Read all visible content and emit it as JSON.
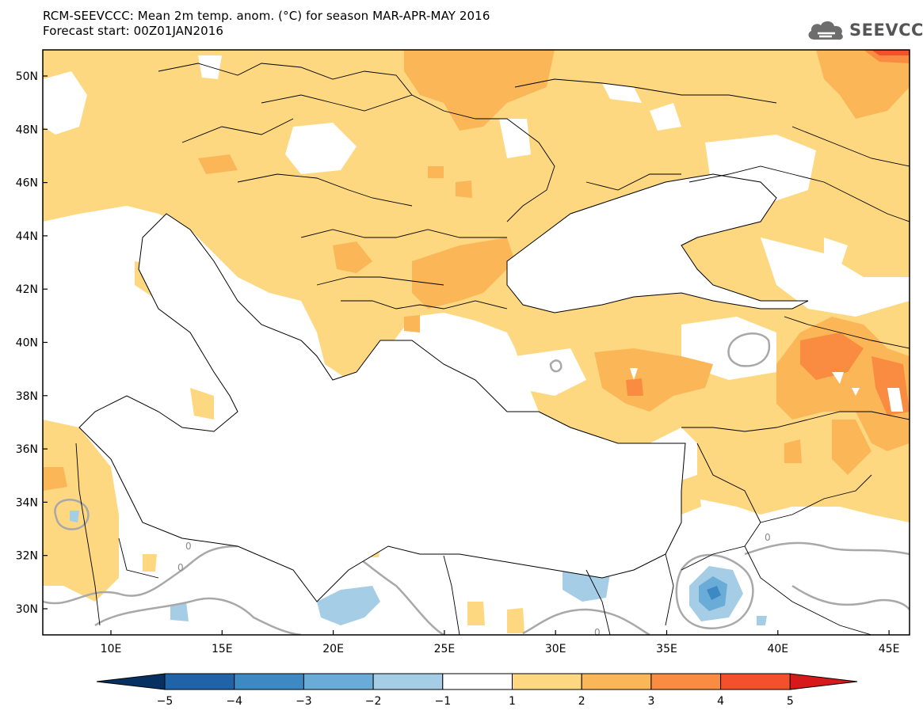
{
  "header": {
    "line1": "RCM-SEEVCCC: Mean 2m temp. anom. (°C) for season MAR-APR-MAY 2016",
    "line2": "Forecast start: 00Z01JAN2016"
  },
  "logo": {
    "text": "SEEVCCC",
    "icon": "cloud-icon"
  },
  "map": {
    "lat_labels": [
      "50N",
      "48N",
      "46N",
      "44N",
      "42N",
      "40N",
      "38N",
      "36N",
      "34N",
      "32N",
      "30N"
    ],
    "lon_labels": [
      "10E",
      "15E",
      "20E",
      "25E",
      "30E",
      "35E",
      "40E",
      "45E"
    ],
    "lon_range": [
      7,
      45.5
    ],
    "lat_range": [
      29,
      51
    ],
    "contour_labels": [
      "0",
      "0",
      "0",
      "0"
    ]
  },
  "colorbar": {
    "ticks": [
      "−5",
      "−4",
      "−3",
      "−2",
      "−1",
      "1",
      "2",
      "3",
      "4",
      "5"
    ],
    "colors": {
      "below_-5": "#053061",
      "-5_-4": "#1f63a8",
      "-4_-3": "#3c89c4",
      "-3_-2": "#6aacd8",
      "-2_-1": "#a5cde5",
      "-1_1": "#ffffff",
      "1_2": "#fdd880",
      "2_3": "#fbb757",
      "3_4": "#f98c41",
      "4_5": "#f2512c",
      "above_5": "#d7191c"
    }
  }
}
